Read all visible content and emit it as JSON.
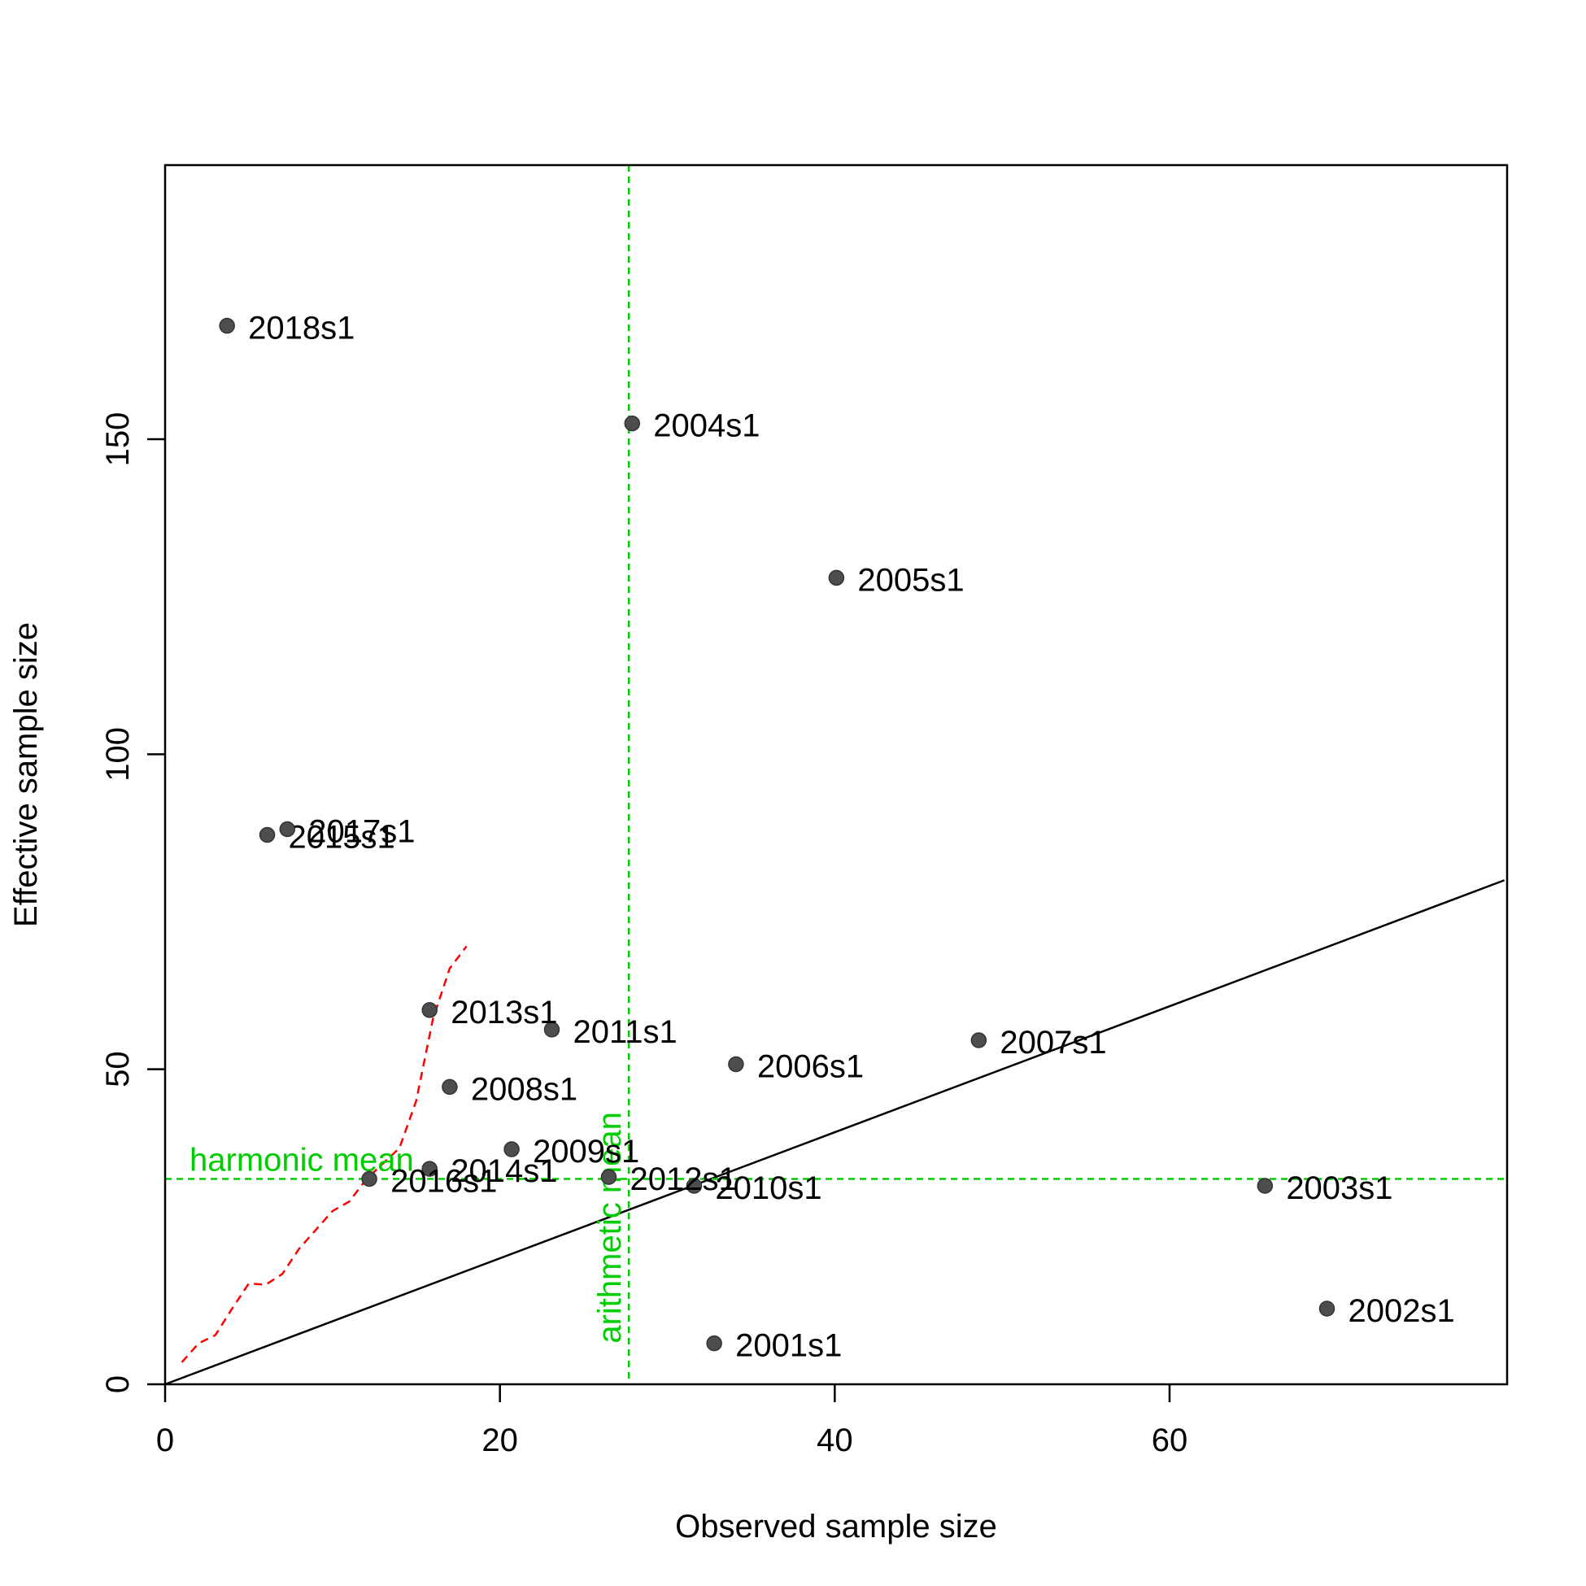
{
  "chart_data": {
    "type": "scatter",
    "xlabel": "Observed sample size",
    "ylabel": "Effective sample size",
    "xlim": [
      0,
      80
    ],
    "ylim": [
      0,
      190
    ],
    "x_ticks": [
      0,
      20,
      40,
      60
    ],
    "y_ticks": [
      0,
      50,
      100,
      150
    ],
    "grid": false,
    "point_color": "#4d4d4d",
    "points": [
      {
        "label": "2001s1",
        "x": 32.8,
        "y": 6.5
      },
      {
        "label": "2002s1",
        "x": 69.4,
        "y": 12.0
      },
      {
        "label": "2003s1",
        "x": 65.7,
        "y": 31.5
      },
      {
        "label": "2004s1",
        "x": 27.9,
        "y": 152.5
      },
      {
        "label": "2005s1",
        "x": 40.1,
        "y": 128.0
      },
      {
        "label": "2006s1",
        "x": 34.1,
        "y": 50.8
      },
      {
        "label": "2007s1",
        "x": 48.6,
        "y": 54.6
      },
      {
        "label": "2008s1",
        "x": 17.0,
        "y": 47.2
      },
      {
        "label": "2009s1",
        "x": 20.7,
        "y": 37.3
      },
      {
        "label": "2010s1",
        "x": 31.6,
        "y": 31.5
      },
      {
        "label": "2011s1",
        "x": 23.1,
        "y": 56.3
      },
      {
        "label": "2012s1",
        "x": 26.5,
        "y": 32.9
      },
      {
        "label": "2013s1",
        "x": 15.8,
        "y": 59.4
      },
      {
        "label": "2014s1",
        "x": 15.8,
        "y": 34.2
      },
      {
        "label": "2015s1",
        "x": 6.1,
        "y": 87.2
      },
      {
        "label": "2016s1",
        "x": 12.2,
        "y": 32.6
      },
      {
        "label": "2017s1",
        "x": 7.3,
        "y": 88.1
      },
      {
        "label": "2018s1",
        "x": 3.7,
        "y": 168.0
      }
    ],
    "identity_line": {
      "x": [
        0,
        80
      ],
      "y": [
        0,
        80
      ],
      "color": "#000000"
    },
    "arithmetic_mean": {
      "label": "arithmetic mean",
      "x": 27.7,
      "color": "#00cd00"
    },
    "harmonic_mean": {
      "label": "harmonic mean",
      "y": 32.6,
      "color": "#00cd00"
    },
    "cumulative_line": {
      "color": "#ff0000",
      "x": [
        1.0,
        2.0,
        3.0,
        4.0,
        5.0,
        6.0,
        7.0,
        8.0,
        9.0,
        10.0,
        11.0,
        12.0,
        13.0,
        14.0,
        15.0,
        16.0,
        17.0,
        18.0
      ],
      "y": [
        3.5,
        6.5,
        7.8,
        12.0,
        16.0,
        15.8,
        17.5,
        21.5,
        24.5,
        27.5,
        29.0,
        32.5,
        35.0,
        37.5,
        45.0,
        58.0,
        66.0,
        69.5
      ]
    }
  }
}
